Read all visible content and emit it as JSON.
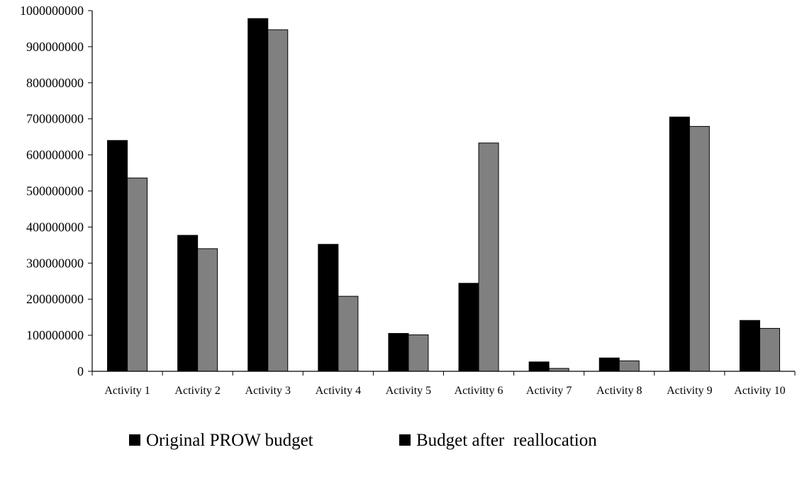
{
  "chart_data": {
    "type": "bar",
    "title": "",
    "xlabel": "",
    "ylabel": "",
    "categories": [
      "Activity 1",
      "Activity 2",
      "Activity 3",
      "Activity 4",
      "Activity 5",
      "Activitty 6",
      "Activity 7",
      "Activity 8",
      "Activity 9",
      "Activity 10"
    ],
    "series": [
      {
        "name": "Original PROW budget",
        "color": "#000000",
        "legend_swatch": "#000000",
        "values": [
          640000000,
          377000000,
          978000000,
          352000000,
          105000000,
          244000000,
          26000000,
          37000000,
          705000000,
          141000000
        ]
      },
      {
        "name": "Budget after  reallocation",
        "color": "#808080",
        "legend_swatch": "#000000",
        "values": [
          536000000,
          340000000,
          947000000,
          208000000,
          101000000,
          633000000,
          8000000,
          29000000,
          679000000,
          119000000
        ]
      }
    ],
    "ylim": [
      0,
      1000000000
    ],
    "yticks": [
      0,
      100000000,
      200000000,
      300000000,
      400000000,
      500000000,
      600000000,
      700000000,
      800000000,
      900000000,
      1000000000
    ],
    "grid": false,
    "legend_position": "bottom"
  }
}
